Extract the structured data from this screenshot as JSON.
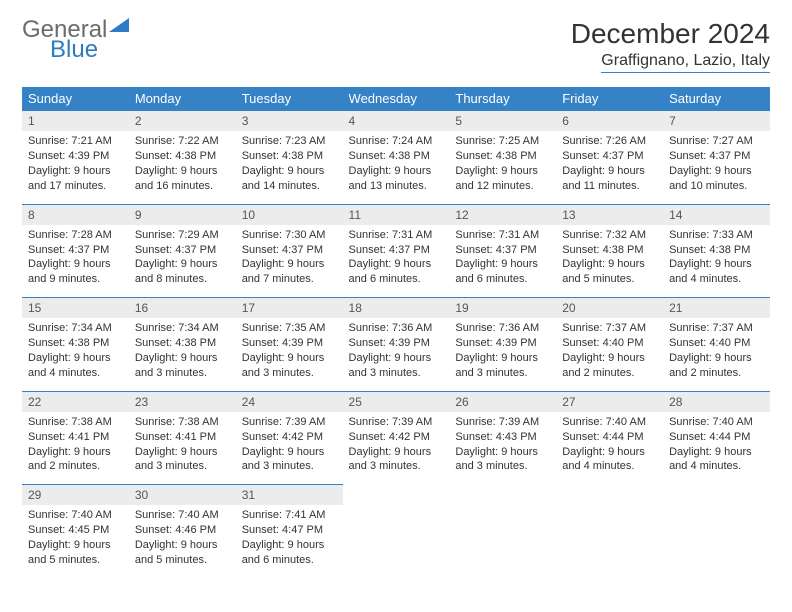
{
  "logo": {
    "line1": "General",
    "line2": "Blue",
    "brand_color": "#2f7ac4",
    "gray": "#6b6b6b"
  },
  "title": "December 2024",
  "subtitle": "Graffignano, Lazio, Italy",
  "colors": {
    "header_bg": "#3682c6",
    "header_text": "#ffffff",
    "daynum_bg": "#ececec",
    "border": "#3682c6",
    "text": "#333333"
  },
  "typography": {
    "title_fontsize": 28,
    "subtitle_fontsize": 16,
    "weekday_fontsize": 13,
    "body_fontsize": 11
  },
  "weekdays": [
    "Sunday",
    "Monday",
    "Tuesday",
    "Wednesday",
    "Thursday",
    "Friday",
    "Saturday"
  ],
  "weeks": [
    [
      {
        "n": "1",
        "sr": "Sunrise: 7:21 AM",
        "ss": "Sunset: 4:39 PM",
        "d1": "Daylight: 9 hours",
        "d2": "and 17 minutes."
      },
      {
        "n": "2",
        "sr": "Sunrise: 7:22 AM",
        "ss": "Sunset: 4:38 PM",
        "d1": "Daylight: 9 hours",
        "d2": "and 16 minutes."
      },
      {
        "n": "3",
        "sr": "Sunrise: 7:23 AM",
        "ss": "Sunset: 4:38 PM",
        "d1": "Daylight: 9 hours",
        "d2": "and 14 minutes."
      },
      {
        "n": "4",
        "sr": "Sunrise: 7:24 AM",
        "ss": "Sunset: 4:38 PM",
        "d1": "Daylight: 9 hours",
        "d2": "and 13 minutes."
      },
      {
        "n": "5",
        "sr": "Sunrise: 7:25 AM",
        "ss": "Sunset: 4:38 PM",
        "d1": "Daylight: 9 hours",
        "d2": "and 12 minutes."
      },
      {
        "n": "6",
        "sr": "Sunrise: 7:26 AM",
        "ss": "Sunset: 4:37 PM",
        "d1": "Daylight: 9 hours",
        "d2": "and 11 minutes."
      },
      {
        "n": "7",
        "sr": "Sunrise: 7:27 AM",
        "ss": "Sunset: 4:37 PM",
        "d1": "Daylight: 9 hours",
        "d2": "and 10 minutes."
      }
    ],
    [
      {
        "n": "8",
        "sr": "Sunrise: 7:28 AM",
        "ss": "Sunset: 4:37 PM",
        "d1": "Daylight: 9 hours",
        "d2": "and 9 minutes."
      },
      {
        "n": "9",
        "sr": "Sunrise: 7:29 AM",
        "ss": "Sunset: 4:37 PM",
        "d1": "Daylight: 9 hours",
        "d2": "and 8 minutes."
      },
      {
        "n": "10",
        "sr": "Sunrise: 7:30 AM",
        "ss": "Sunset: 4:37 PM",
        "d1": "Daylight: 9 hours",
        "d2": "and 7 minutes."
      },
      {
        "n": "11",
        "sr": "Sunrise: 7:31 AM",
        "ss": "Sunset: 4:37 PM",
        "d1": "Daylight: 9 hours",
        "d2": "and 6 minutes."
      },
      {
        "n": "12",
        "sr": "Sunrise: 7:31 AM",
        "ss": "Sunset: 4:37 PM",
        "d1": "Daylight: 9 hours",
        "d2": "and 6 minutes."
      },
      {
        "n": "13",
        "sr": "Sunrise: 7:32 AM",
        "ss": "Sunset: 4:38 PM",
        "d1": "Daylight: 9 hours",
        "d2": "and 5 minutes."
      },
      {
        "n": "14",
        "sr": "Sunrise: 7:33 AM",
        "ss": "Sunset: 4:38 PM",
        "d1": "Daylight: 9 hours",
        "d2": "and 4 minutes."
      }
    ],
    [
      {
        "n": "15",
        "sr": "Sunrise: 7:34 AM",
        "ss": "Sunset: 4:38 PM",
        "d1": "Daylight: 9 hours",
        "d2": "and 4 minutes."
      },
      {
        "n": "16",
        "sr": "Sunrise: 7:34 AM",
        "ss": "Sunset: 4:38 PM",
        "d1": "Daylight: 9 hours",
        "d2": "and 3 minutes."
      },
      {
        "n": "17",
        "sr": "Sunrise: 7:35 AM",
        "ss": "Sunset: 4:39 PM",
        "d1": "Daylight: 9 hours",
        "d2": "and 3 minutes."
      },
      {
        "n": "18",
        "sr": "Sunrise: 7:36 AM",
        "ss": "Sunset: 4:39 PM",
        "d1": "Daylight: 9 hours",
        "d2": "and 3 minutes."
      },
      {
        "n": "19",
        "sr": "Sunrise: 7:36 AM",
        "ss": "Sunset: 4:39 PM",
        "d1": "Daylight: 9 hours",
        "d2": "and 3 minutes."
      },
      {
        "n": "20",
        "sr": "Sunrise: 7:37 AM",
        "ss": "Sunset: 4:40 PM",
        "d1": "Daylight: 9 hours",
        "d2": "and 2 minutes."
      },
      {
        "n": "21",
        "sr": "Sunrise: 7:37 AM",
        "ss": "Sunset: 4:40 PM",
        "d1": "Daylight: 9 hours",
        "d2": "and 2 minutes."
      }
    ],
    [
      {
        "n": "22",
        "sr": "Sunrise: 7:38 AM",
        "ss": "Sunset: 4:41 PM",
        "d1": "Daylight: 9 hours",
        "d2": "and 2 minutes."
      },
      {
        "n": "23",
        "sr": "Sunrise: 7:38 AM",
        "ss": "Sunset: 4:41 PM",
        "d1": "Daylight: 9 hours",
        "d2": "and 3 minutes."
      },
      {
        "n": "24",
        "sr": "Sunrise: 7:39 AM",
        "ss": "Sunset: 4:42 PM",
        "d1": "Daylight: 9 hours",
        "d2": "and 3 minutes."
      },
      {
        "n": "25",
        "sr": "Sunrise: 7:39 AM",
        "ss": "Sunset: 4:42 PM",
        "d1": "Daylight: 9 hours",
        "d2": "and 3 minutes."
      },
      {
        "n": "26",
        "sr": "Sunrise: 7:39 AM",
        "ss": "Sunset: 4:43 PM",
        "d1": "Daylight: 9 hours",
        "d2": "and 3 minutes."
      },
      {
        "n": "27",
        "sr": "Sunrise: 7:40 AM",
        "ss": "Sunset: 4:44 PM",
        "d1": "Daylight: 9 hours",
        "d2": "and 4 minutes."
      },
      {
        "n": "28",
        "sr": "Sunrise: 7:40 AM",
        "ss": "Sunset: 4:44 PM",
        "d1": "Daylight: 9 hours",
        "d2": "and 4 minutes."
      }
    ],
    [
      {
        "n": "29",
        "sr": "Sunrise: 7:40 AM",
        "ss": "Sunset: 4:45 PM",
        "d1": "Daylight: 9 hours",
        "d2": "and 5 minutes."
      },
      {
        "n": "30",
        "sr": "Sunrise: 7:40 AM",
        "ss": "Sunset: 4:46 PM",
        "d1": "Daylight: 9 hours",
        "d2": "and 5 minutes."
      },
      {
        "n": "31",
        "sr": "Sunrise: 7:41 AM",
        "ss": "Sunset: 4:47 PM",
        "d1": "Daylight: 9 hours",
        "d2": "and 6 minutes."
      },
      null,
      null,
      null,
      null
    ]
  ]
}
